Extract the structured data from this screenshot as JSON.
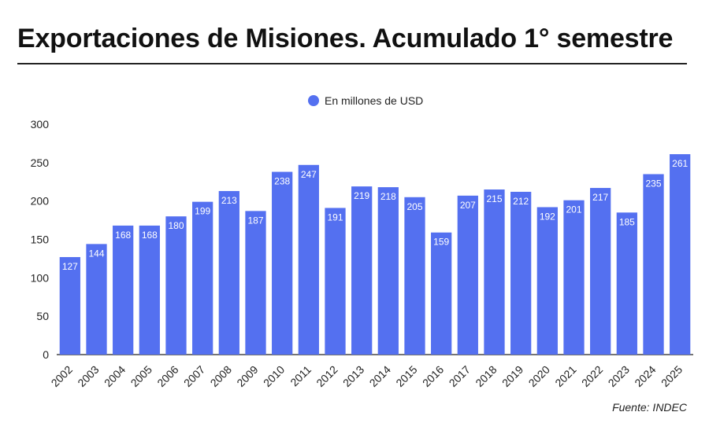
{
  "title": "Exportaciones de Misiones. Acumulado 1° semestre",
  "source": "Fuente: INDEC",
  "colors": {
    "bar": "#5470f0",
    "label": "#ffffff",
    "axis": "#222222",
    "grid": "#e0e0e0"
  },
  "chart_data": {
    "type": "bar",
    "categories": [
      "2002",
      "2003",
      "2004",
      "2005",
      "2006",
      "2007",
      "2008",
      "2009",
      "2010",
      "2011",
      "2012",
      "2013",
      "2014",
      "2015",
      "2016",
      "2017",
      "2018",
      "2019",
      "2020",
      "2021",
      "2022",
      "2023",
      "2024",
      "2025"
    ],
    "series": [
      {
        "name": "En millones de USD",
        "values": [
          127,
          144,
          168,
          168,
          180,
          199,
          213,
          187,
          238,
          247,
          191,
          219,
          218,
          205,
          159,
          207,
          215,
          212,
          192,
          201,
          217,
          185,
          235,
          261
        ]
      }
    ],
    "ylim": [
      0,
      300
    ],
    "yticks": [
      0,
      50,
      100,
      150,
      200,
      250,
      300
    ],
    "legend_position": "top-center",
    "grid": false,
    "xlabel": "",
    "ylabel": ""
  }
}
